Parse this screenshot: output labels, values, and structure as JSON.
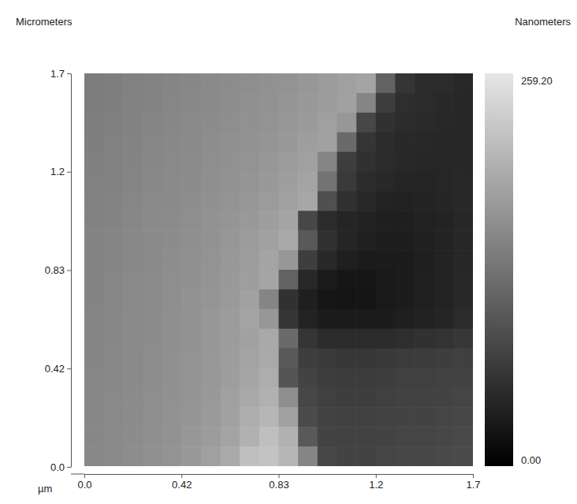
{
  "chart_data": {
    "type": "heatmap",
    "y_label": "Micrometers",
    "x_label": "µm",
    "colorbar_label": "Nanometers",
    "xlim": [
      0,
      1.66
    ],
    "ylim": [
      0,
      1.66
    ],
    "xticks": [
      {
        "value": 0,
        "label": "0.0"
      },
      {
        "value": 0.415,
        "label": "0.42"
      },
      {
        "value": 0.83,
        "label": "0.83"
      },
      {
        "value": 1.245,
        "label": "1.2"
      },
      {
        "value": 1.66,
        "label": "1.7"
      }
    ],
    "yticks": [
      {
        "value": 0,
        "label": "0.0"
      },
      {
        "value": 0.415,
        "label": "0.42"
      },
      {
        "value": 0.83,
        "label": "0.83"
      },
      {
        "value": 1.245,
        "label": "1.2"
      },
      {
        "value": 1.66,
        "label": "1.7"
      }
    ],
    "colorbar": {
      "range": [
        0,
        259.2
      ],
      "ticks": [
        {
          "value": 0,
          "label": "0.00"
        },
        {
          "value": 259.2,
          "label": "259.20"
        }
      ]
    },
    "cells": [
      [
        140,
        142,
        145,
        148,
        150,
        152,
        155,
        158,
        160,
        163,
        166,
        170,
        175,
        180,
        185,
        110,
        60,
        50,
        48,
        45
      ],
      [
        140,
        143,
        146,
        148,
        151,
        153,
        156,
        159,
        162,
        165,
        168,
        172,
        176,
        182,
        150,
        70,
        52,
        48,
        46,
        44
      ],
      [
        142,
        144,
        147,
        150,
        152,
        155,
        158,
        160,
        163,
        166,
        170,
        174,
        180,
        170,
        80,
        55,
        50,
        47,
        45,
        44
      ],
      [
        143,
        145,
        148,
        151,
        153,
        156,
        159,
        162,
        165,
        168,
        172,
        178,
        182,
        120,
        60,
        50,
        46,
        45,
        44,
        44
      ],
      [
        144,
        146,
        149,
        152,
        154,
        157,
        160,
        163,
        166,
        170,
        175,
        180,
        150,
        70,
        55,
        48,
        45,
        44,
        43,
        44
      ],
      [
        145,
        147,
        150,
        153,
        155,
        158,
        161,
        164,
        168,
        172,
        178,
        185,
        130,
        65,
        50,
        45,
        42,
        42,
        43,
        45
      ],
      [
        146,
        148,
        151,
        154,
        156,
        159,
        162,
        166,
        170,
        175,
        182,
        188,
        90,
        55,
        45,
        40,
        38,
        40,
        42,
        45
      ],
      [
        147,
        149,
        152,
        155,
        157,
        160,
        164,
        168,
        172,
        178,
        185,
        80,
        50,
        42,
        38,
        35,
        35,
        38,
        40,
        44
      ],
      [
        148,
        150,
        153,
        156,
        158,
        161,
        165,
        170,
        175,
        182,
        190,
        100,
        55,
        42,
        36,
        33,
        33,
        36,
        40,
        44
      ],
      [
        148,
        150,
        153,
        156,
        159,
        162,
        166,
        171,
        177,
        185,
        170,
        70,
        45,
        35,
        30,
        30,
        32,
        35,
        40,
        44
      ],
      [
        149,
        151,
        154,
        157,
        160,
        163,
        167,
        172,
        178,
        186,
        110,
        45,
        30,
        25,
        25,
        28,
        32,
        36,
        40,
        45
      ],
      [
        149,
        151,
        154,
        157,
        160,
        164,
        168,
        174,
        182,
        150,
        55,
        35,
        25,
        22,
        24,
        28,
        32,
        36,
        40,
        46
      ],
      [
        150,
        152,
        155,
        158,
        161,
        165,
        170,
        176,
        185,
        170,
        60,
        40,
        32,
        30,
        30,
        32,
        35,
        38,
        42,
        48
      ],
      [
        150,
        152,
        155,
        158,
        161,
        165,
        170,
        176,
        182,
        190,
        120,
        60,
        50,
        48,
        48,
        50,
        52,
        55,
        58,
        62
      ],
      [
        150,
        153,
        156,
        159,
        162,
        166,
        171,
        177,
        184,
        192,
        100,
        70,
        65,
        62,
        62,
        64,
        66,
        68,
        70,
        72
      ],
      [
        151,
        153,
        156,
        159,
        162,
        166,
        171,
        178,
        186,
        195,
        95,
        75,
        70,
        68,
        68,
        70,
        72,
        72,
        74,
        76
      ],
      [
        151,
        154,
        157,
        160,
        163,
        167,
        172,
        180,
        190,
        200,
        160,
        80,
        72,
        70,
        70,
        72,
        74,
        74,
        76,
        78
      ],
      [
        152,
        154,
        157,
        160,
        164,
        168,
        174,
        182,
        195,
        205,
        180,
        85,
        74,
        72,
        72,
        74,
        76,
        76,
        78,
        80
      ],
      [
        152,
        155,
        158,
        161,
        165,
        170,
        176,
        185,
        200,
        215,
        200,
        100,
        76,
        74,
        74,
        76,
        78,
        78,
        80,
        82
      ],
      [
        153,
        156,
        159,
        162,
        166,
        172,
        180,
        192,
        215,
        220,
        205,
        150,
        80,
        76,
        76,
        78,
        80,
        80,
        82,
        84
      ]
    ]
  }
}
